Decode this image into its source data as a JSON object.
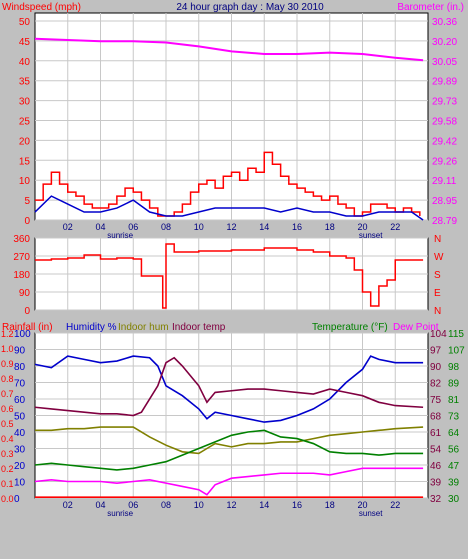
{
  "header": {
    "left": "Windspeed (mph)",
    "center": "24 hour graph day : May 30 2010",
    "right": "Barometer (in.)"
  },
  "colors": {
    "background": "#c0c0c0",
    "plot_bg": "#ffffff",
    "wind": "#ff0000",
    "wind_avg": "#0000cc",
    "barometer": "#ff00ff",
    "direction": "#ff0000",
    "humidity": "#0000cc",
    "indoor_hum": "#808000",
    "indoor_temp": "#800040",
    "temperature": "#008000",
    "dew_point": "#ff00ff",
    "rainfall": "#ff0000",
    "header_text": "#ff0000",
    "title_text": "#000080"
  },
  "chart_data": [
    {
      "type": "line",
      "title": "24 hour graph day : May 30 2010",
      "ylabel_left": "Windspeed (mph)",
      "ylabel_right": "Barometer (in.)",
      "x_ticks": [
        "02",
        "04",
        "06",
        "08",
        "10",
        "12",
        "14",
        "16",
        "18",
        "20",
        "22"
      ],
      "x_markers": {
        "sunrise": "sunrise",
        "sunset": "sunset"
      },
      "left_ticks": [
        "50",
        "45",
        "40",
        "35",
        "30",
        "25",
        "20",
        "15",
        "10",
        "5",
        "0"
      ],
      "right_ticks": [
        "30.36",
        "30.20",
        "30.05",
        "29.89",
        "29.73",
        "29.58",
        "29.42",
        "29.26",
        "29.11",
        "28.95",
        "28.79"
      ],
      "ylim_left": [
        0,
        50
      ],
      "ylim_right": [
        28.79,
        30.36
      ],
      "series": [
        {
          "name": "Windspeed (mph)",
          "axis": "left",
          "style": "gust",
          "x": [
            0,
            0.5,
            1,
            1.5,
            2,
            2.5,
            3,
            3.5,
            4,
            4.5,
            5,
            5.5,
            6,
            6.5,
            7,
            7.5,
            8,
            8.5,
            9,
            9.5,
            10,
            10.5,
            11,
            11.5,
            12,
            12.5,
            13,
            13.5,
            14,
            14.5,
            15,
            15.5,
            16,
            16.5,
            17,
            17.5,
            18,
            18.5,
            19,
            19.5,
            20,
            20.5,
            21,
            21.5,
            22,
            22.5,
            23,
            23.5
          ],
          "y": [
            5,
            9,
            12,
            9,
            7,
            6,
            4,
            3,
            3,
            4,
            6,
            8,
            7,
            5,
            3,
            1,
            1,
            2,
            4,
            7,
            9,
            10,
            8,
            11,
            12,
            10,
            13,
            12,
            17,
            14,
            11,
            9,
            8,
            7,
            6,
            5,
            6,
            4,
            3,
            1,
            2,
            4,
            4,
            3,
            2,
            3,
            2,
            1
          ]
        },
        {
          "name": "Windspeed average",
          "axis": "left",
          "x": [
            0,
            1,
            2,
            3,
            4,
            5,
            6,
            7,
            8,
            9,
            10,
            11,
            12,
            13,
            14,
            15,
            16,
            17,
            18,
            19,
            20,
            21,
            22,
            23,
            23.7
          ],
          "y": [
            2,
            6,
            4,
            2,
            2,
            3,
            5,
            2,
            1,
            1,
            2,
            3,
            3,
            3,
            3,
            2,
            3,
            2,
            2,
            1,
            1,
            2,
            2,
            2,
            0
          ]
        },
        {
          "name": "Barometer (in.)",
          "axis": "right",
          "x": [
            0,
            2,
            4,
            6,
            8,
            10,
            12,
            14,
            16,
            18,
            20,
            22,
            23.7
          ],
          "y": [
            30.22,
            30.21,
            30.2,
            30.2,
            30.19,
            30.16,
            30.12,
            30.1,
            30.1,
            30.11,
            30.1,
            30.07,
            30.05
          ]
        }
      ]
    },
    {
      "type": "line",
      "ylabel": "Wind direction",
      "left_ticks": [
        "360",
        "270",
        "180",
        "90",
        "0"
      ],
      "right_labels": [
        "N",
        "W",
        "S",
        "E",
        "N"
      ],
      "ylim": [
        0,
        360
      ],
      "series": [
        {
          "name": "Wind direction",
          "step": true,
          "x": [
            0,
            1,
            2,
            3,
            4,
            5,
            6,
            6.5,
            7.5,
            7.8,
            8,
            8.5,
            10,
            12,
            14,
            16,
            17,
            18,
            18.5,
            19,
            19.5,
            20,
            20.5,
            21,
            21.5,
            22,
            23.7
          ],
          "y": [
            250,
            255,
            260,
            275,
            255,
            260,
            255,
            170,
            170,
            10,
            330,
            290,
            295,
            300,
            310,
            300,
            290,
            270,
            270,
            260,
            200,
            90,
            20,
            120,
            150,
            250,
            250
          ]
        }
      ]
    },
    {
      "type": "line",
      "header": {
        "rainfall": "Rainfall (in)",
        "humidity": "Humidity %",
        "indoor_hum": "Indoor hum",
        "indoor_temp": "Indoor temp",
        "temperature": "Temperature (°F)",
        "dew_point": "Dew Point"
      },
      "axis_rain_ticks": [
        "1.2",
        "1.0",
        "0.9",
        "0.8",
        "0.7",
        "0.6",
        "0.5",
        "0.4",
        "0.3",
        "0.2",
        "0.1",
        "0.0"
      ],
      "axis_hum_ticks": [
        "100",
        "90",
        "80",
        "70",
        "60",
        "50",
        "40",
        "30",
        "20",
        "10",
        "0"
      ],
      "axis_temp_ticks": [
        "104",
        "97",
        "90",
        "82",
        "75",
        "68",
        "61",
        "54",
        "46",
        "39",
        "32"
      ],
      "axis_indoor_ticks": [
        "115",
        "107",
        "98",
        "89",
        "81",
        "73",
        "64",
        "56",
        "47",
        "39",
        "30"
      ],
      "ylim_humidity": [
        0,
        100
      ],
      "series": [
        {
          "name": "Humidity %",
          "axis": "humidity",
          "x": [
            0,
            1,
            2,
            3,
            4,
            5,
            6,
            7,
            7.5,
            8,
            9,
            10,
            10.5,
            11,
            12,
            13,
            14,
            15,
            16,
            17,
            18,
            19,
            20,
            20.5,
            21,
            22,
            23.7
          ],
          "y": [
            81,
            79,
            86,
            84,
            82,
            83,
            86,
            85,
            80,
            68,
            62,
            54,
            48,
            52,
            50,
            48,
            46,
            47,
            50,
            54,
            60,
            70,
            78,
            86,
            84,
            82,
            82
          ]
        },
        {
          "name": "Indoor hum",
          "axis": "humidity",
          "x": [
            0,
            1,
            2,
            3,
            4,
            5,
            6,
            7,
            8,
            9,
            10,
            10.5,
            11,
            12,
            13,
            14,
            15,
            16,
            17,
            18,
            19,
            20,
            21,
            22,
            23.7
          ],
          "y": [
            41,
            41,
            42,
            42,
            43,
            43,
            43,
            37,
            32,
            28,
            27,
            30,
            33,
            31,
            33,
            33,
            34,
            34,
            36,
            38,
            39,
            40,
            41,
            42,
            43
          ]
        },
        {
          "name": "Indoor temp",
          "axis": "humidity",
          "x": [
            0,
            1,
            2,
            3,
            4,
            5,
            6,
            6.5,
            7.5,
            8,
            8.5,
            9,
            10,
            10.5,
            11,
            12,
            13,
            14,
            15,
            16,
            17,
            18,
            19,
            20,
            21,
            22,
            23.7
          ],
          "y": [
            55,
            54,
            53,
            52,
            51,
            51,
            50,
            52,
            68,
            82,
            85,
            80,
            68,
            58,
            64,
            65,
            66,
            66,
            65,
            64,
            63,
            66,
            64,
            62,
            58,
            56,
            55
          ]
        },
        {
          "name": "Temperature (°F)",
          "axis": "humidity",
          "x": [
            0,
            1,
            2,
            3,
            4,
            5,
            6,
            7,
            8,
            9,
            10,
            11,
            12,
            13,
            14,
            15,
            16,
            17,
            18,
            19,
            20,
            21,
            22,
            23.7
          ],
          "y": [
            20,
            21,
            20,
            19,
            18,
            17,
            18,
            20,
            22,
            26,
            30,
            34,
            38,
            40,
            41,
            37,
            36,
            33,
            28,
            27,
            27,
            26,
            27,
            27
          ]
        },
        {
          "name": "Dew Point",
          "axis": "humidity",
          "x": [
            0,
            1,
            2,
            3,
            4,
            5,
            6,
            7,
            8,
            9,
            10,
            10.5,
            11,
            12,
            13,
            14,
            15,
            16,
            17,
            18,
            19,
            20,
            21,
            22,
            23.7
          ],
          "y": [
            10,
            11,
            10,
            10,
            10,
            9,
            10,
            11,
            9,
            7,
            5,
            2,
            8,
            12,
            13,
            14,
            15,
            15,
            15,
            14,
            16,
            18,
            18,
            18,
            18
          ]
        },
        {
          "name": "Rainfall (in)",
          "axis": "humidity",
          "x": [
            0,
            23.7
          ],
          "y": [
            0.5,
            0.5
          ]
        }
      ]
    }
  ]
}
